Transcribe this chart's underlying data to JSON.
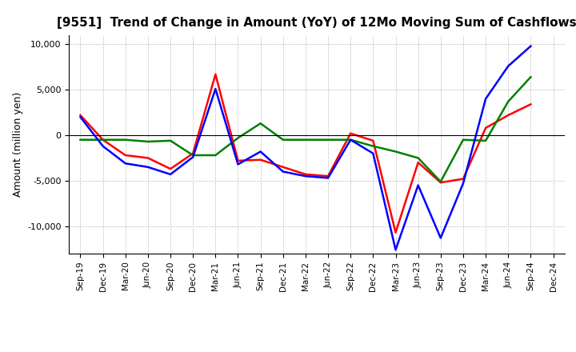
{
  "title": "[9551]  Trend of Change in Amount (YoY) of 12Mo Moving Sum of Cashflows",
  "ylabel": "Amount (million yen)",
  "x_labels": [
    "Sep-19",
    "Dec-19",
    "Mar-20",
    "Jun-20",
    "Sep-20",
    "Dec-20",
    "Mar-21",
    "Jun-21",
    "Sep-21",
    "Dec-21",
    "Mar-22",
    "Jun-22",
    "Sep-22",
    "Dec-22",
    "Mar-23",
    "Jun-23",
    "Sep-23",
    "Dec-23",
    "Mar-24",
    "Jun-24",
    "Sep-24",
    "Dec-24"
  ],
  "operating": [
    2200,
    -500,
    -2200,
    -2500,
    -3700,
    -2000,
    6700,
    -2800,
    -2700,
    -3500,
    -4300,
    -4500,
    200,
    -600,
    -10700,
    -3000,
    -5200,
    -4800,
    800,
    2200,
    3400,
    null
  ],
  "investing": [
    -500,
    -500,
    -500,
    -700,
    -600,
    -2200,
    -2200,
    -300,
    1300,
    -500,
    -500,
    -500,
    -500,
    -1200,
    -1800,
    -2500,
    -5100,
    -500,
    -600,
    3700,
    6400,
    null
  ],
  "free": [
    2000,
    -1200,
    -3100,
    -3500,
    -4300,
    -2400,
    5100,
    -3200,
    -1800,
    -4000,
    -4500,
    -4700,
    -500,
    -2000,
    -12600,
    -5500,
    -11300,
    -5300,
    4000,
    7600,
    9800,
    null
  ],
  "ylim": [
    -13000,
    11000
  ],
  "yticks": [
    -10000,
    -5000,
    0,
    5000,
    10000
  ],
  "operating_color": "#ff0000",
  "investing_color": "#008000",
  "free_color": "#0000ff",
  "bg_color": "#ffffff",
  "grid_color": "#aaaaaa",
  "linewidth": 1.8,
  "title_fontsize": 11,
  "ylabel_fontsize": 9,
  "tick_fontsize": 8,
  "xtick_fontsize": 7.5,
  "legend_fontsize": 9
}
